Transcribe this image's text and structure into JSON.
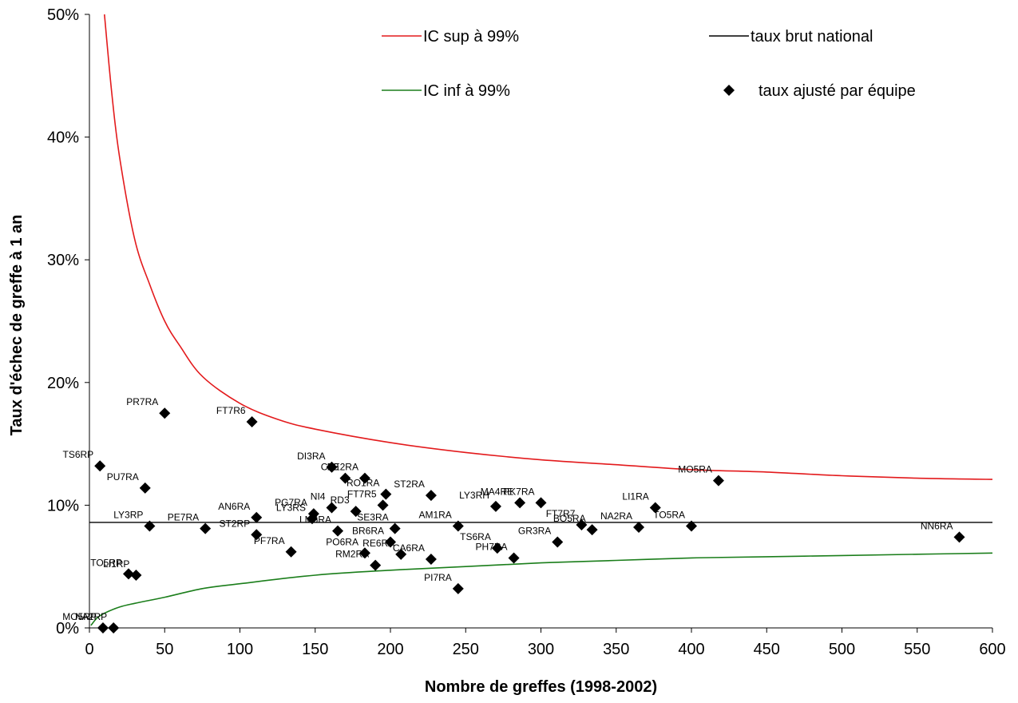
{
  "chart_data": {
    "type": "scatter",
    "xlabel": "Nombre de greffes (1998-2002)",
    "ylabel": "Taux d'échec de greffe à 1 an",
    "xlim": [
      0,
      600
    ],
    "ylim": [
      0,
      0.5
    ],
    "x_ticks": [
      0,
      50,
      100,
      150,
      200,
      250,
      300,
      350,
      400,
      450,
      500,
      550,
      600
    ],
    "y_ticks": [
      0,
      0.1,
      0.2,
      0.3,
      0.4,
      0.5
    ],
    "y_tick_labels": [
      "0%",
      "10%",
      "20%",
      "30%",
      "40%",
      "50%"
    ],
    "grid": false,
    "legend_position": "top",
    "legend": [
      {
        "key": "ic_sup",
        "label": "IC sup à 99%",
        "marker": "line",
        "color": "#e31a1c"
      },
      {
        "key": "national",
        "label": "taux brut national",
        "marker": "line",
        "color": "#000000"
      },
      {
        "key": "ic_inf",
        "label": "IC inf à 99%",
        "marker": "line",
        "color": "#1b7e1b"
      },
      {
        "key": "teams",
        "label": "taux ajusté par équipe",
        "marker": "diamond",
        "color": "#000000"
      }
    ],
    "national_rate": 0.086,
    "series": [
      {
        "name": "IC sup à 99%",
        "color": "#e31a1c",
        "x": [
          10,
          15,
          20,
          30,
          40,
          50,
          60,
          75,
          100,
          125,
          150,
          200,
          250,
          300,
          350,
          400,
          450,
          500,
          550,
          600
        ],
        "y": [
          0.5,
          0.434,
          0.384,
          0.317,
          0.28,
          0.25,
          0.23,
          0.205,
          0.183,
          0.17,
          0.162,
          0.151,
          0.143,
          0.137,
          0.133,
          0.129,
          0.127,
          0.124,
          0.122,
          0.121
        ]
      },
      {
        "name": "IC inf à 99%",
        "color": "#1b7e1b",
        "x": [
          1,
          5,
          10,
          20,
          30,
          50,
          75,
          100,
          150,
          200,
          250,
          300,
          350,
          400,
          450,
          500,
          550,
          600
        ],
        "y": [
          0.002,
          0.008,
          0.012,
          0.017,
          0.02,
          0.025,
          0.032,
          0.036,
          0.043,
          0.047,
          0.05,
          0.053,
          0.055,
          0.057,
          0.058,
          0.059,
          0.06,
          0.061
        ]
      }
    ],
    "points": [
      {
        "label": "PR7RA",
        "x": 50,
        "y": 0.175
      },
      {
        "label": "FT7R6",
        "x": 108,
        "y": 0.168
      },
      {
        "label": "TS6RP",
        "x": 7,
        "y": 0.132
      },
      {
        "label": "PU7RA",
        "x": 37,
        "y": 0.114
      },
      {
        "label": "DI3RA",
        "x": 161,
        "y": 0.131
      },
      {
        "label": "CF3",
        "x": 170,
        "y": 0.122
      },
      {
        "label": "BE2RA",
        "x": 183,
        "y": 0.122
      },
      {
        "label": "RO1RA",
        "x": 197,
        "y": 0.109
      },
      {
        "label": "ST2RA",
        "x": 227,
        "y": 0.108
      },
      {
        "label": "MA4RE",
        "x": 286,
        "y": 0.102
      },
      {
        "label": "PK7RA",
        "x": 300,
        "y": 0.102
      },
      {
        "label": "LY3RH",
        "x": 270,
        "y": 0.099
      },
      {
        "label": "LI1RA",
        "x": 376,
        "y": 0.098
      },
      {
        "label": "MO5RA",
        "x": 418,
        "y": 0.12
      },
      {
        "label": "AN6RA",
        "x": 111,
        "y": 0.09
      },
      {
        "label": "PG7RA",
        "x": 149,
        "y": 0.093
      },
      {
        "label": "LY3RS",
        "x": 148,
        "y": 0.089
      },
      {
        "label": "NI4",
        "x": 161,
        "y": 0.098
      },
      {
        "label": "RD3",
        "x": 177,
        "y": 0.095
      },
      {
        "label": "FT7R5",
        "x": 195,
        "y": 0.1
      },
      {
        "label": "LY3RP",
        "x": 40,
        "y": 0.083
      },
      {
        "label": "PE7RA",
        "x": 77,
        "y": 0.081
      },
      {
        "label": "ST2RP",
        "x": 111,
        "y": 0.076
      },
      {
        "label": "LM6RA",
        "x": 165,
        "y": 0.079
      },
      {
        "label": "SE3RA",
        "x": 203,
        "y": 0.081
      },
      {
        "label": "AM1RA",
        "x": 245,
        "y": 0.083
      },
      {
        "label": "FT7R7",
        "x": 327,
        "y": 0.084
      },
      {
        "label": "BO5RA",
        "x": 334,
        "y": 0.08
      },
      {
        "label": "NA2RA",
        "x": 365,
        "y": 0.082
      },
      {
        "label": "TO5RA",
        "x": 400,
        "y": 0.083
      },
      {
        "label": "NN6RA",
        "x": 578,
        "y": 0.074
      },
      {
        "label": "BR6RA",
        "x": 200,
        "y": 0.07
      },
      {
        "label": "PF7RA",
        "x": 134,
        "y": 0.062
      },
      {
        "label": "PO6RA",
        "x": 183,
        "y": 0.061
      },
      {
        "label": "RE6RA",
        "x": 207,
        "y": 0.06
      },
      {
        "label": "RM2RA",
        "x": 190,
        "y": 0.051
      },
      {
        "label": "CA6RA",
        "x": 227,
        "y": 0.056
      },
      {
        "label": "TS6RA",
        "x": 271,
        "y": 0.065
      },
      {
        "label": "PH7RA",
        "x": 282,
        "y": 0.057
      },
      {
        "label": "GR3RA",
        "x": 311,
        "y": 0.07
      },
      {
        "label": "PI7RA",
        "x": 245,
        "y": 0.032
      },
      {
        "label": "TO5RP",
        "x": 26,
        "y": 0.044
      },
      {
        "label": "LI1RP",
        "x": 31,
        "y": 0.043
      },
      {
        "label": "MO5RP",
        "x": 9,
        "y": 0.0
      },
      {
        "label": "NA2RP",
        "x": 16,
        "y": 0.0
      }
    ]
  }
}
